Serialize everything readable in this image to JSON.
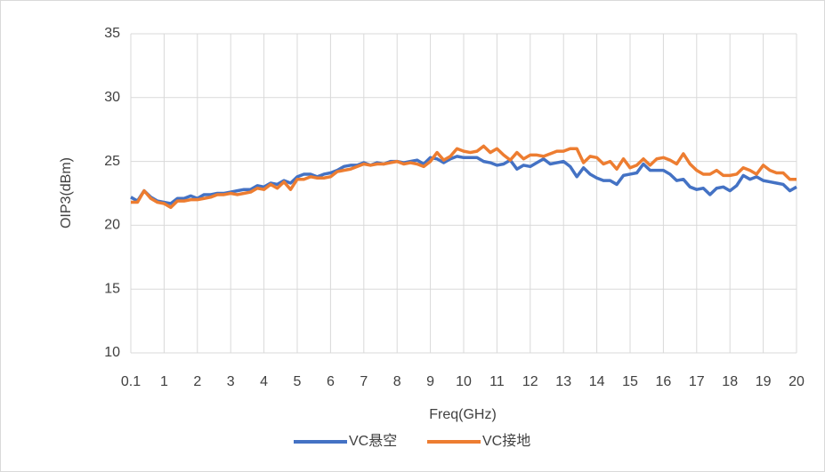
{
  "chart_data": {
    "type": "line",
    "x_label": "Freq(GHz)",
    "y_label": "OIP3(dBm)",
    "categories": [
      0.1,
      null,
      null,
      null,
      null,
      1,
      null,
      null,
      null,
      null,
      2,
      null,
      null,
      null,
      null,
      3,
      null,
      null,
      null,
      null,
      4,
      null,
      null,
      null,
      null,
      5,
      null,
      null,
      null,
      null,
      6,
      null,
      null,
      null,
      null,
      7,
      null,
      null,
      null,
      null,
      8,
      null,
      null,
      null,
      null,
      9,
      null,
      null,
      null,
      null,
      10,
      null,
      null,
      null,
      null,
      11,
      null,
      null,
      null,
      null,
      12,
      null,
      null,
      null,
      null,
      13,
      null,
      null,
      null,
      null,
      14,
      null,
      null,
      null,
      null,
      15,
      null,
      null,
      null,
      null,
      16,
      null,
      null,
      null,
      null,
      17,
      null,
      null,
      null,
      null,
      18,
      null,
      null,
      null,
      null,
      19,
      null,
      null,
      null,
      null,
      20
    ],
    "series": [
      {
        "name": "VC悬空",
        "color": "#4472c4",
        "values": [
          22.2,
          21.9,
          22.7,
          22.2,
          21.9,
          21.8,
          21.7,
          22.1,
          22.1,
          22.3,
          22.1,
          22.4,
          22.4,
          22.5,
          22.5,
          22.6,
          22.7,
          22.8,
          22.8,
          23.1,
          23.0,
          23.3,
          23.2,
          23.5,
          23.3,
          23.8,
          24.0,
          24.0,
          23.8,
          24.0,
          24.1,
          24.3,
          24.6,
          24.7,
          24.7,
          24.9,
          24.7,
          24.9,
          24.8,
          25.0,
          25.0,
          24.9,
          25.0,
          25.1,
          24.8,
          25.3,
          25.2,
          24.9,
          25.2,
          25.4,
          25.3,
          25.3,
          25.3,
          25.0,
          24.9,
          24.7,
          24.8,
          25.1,
          24.4,
          24.7,
          24.6,
          24.9,
          25.2,
          24.8,
          24.9,
          25.0,
          24.6,
          23.8,
          24.5,
          24.0,
          23.7,
          23.5,
          23.5,
          23.2,
          23.9,
          24.0,
          24.1,
          24.8,
          24.3,
          24.3,
          24.3,
          24.0,
          23.5,
          23.6,
          23.0,
          22.8,
          22.9,
          22.4,
          22.9,
          23.0,
          22.7,
          23.1,
          23.9,
          23.6,
          23.8,
          23.5,
          23.4,
          23.3,
          23.2,
          22.7,
          23.0
        ]
      },
      {
        "name": "VC接地",
        "color": "#ed7d31",
        "values": [
          21.8,
          21.8,
          22.7,
          22.1,
          21.8,
          21.7,
          21.4,
          21.9,
          21.9,
          22.0,
          22.0,
          22.1,
          22.2,
          22.4,
          22.4,
          22.5,
          22.4,
          22.5,
          22.6,
          22.9,
          22.8,
          23.2,
          22.9,
          23.4,
          22.8,
          23.6,
          23.6,
          23.8,
          23.7,
          23.7,
          23.8,
          24.2,
          24.3,
          24.4,
          24.6,
          24.8,
          24.7,
          24.8,
          24.8,
          24.9,
          25.0,
          24.8,
          24.9,
          24.8,
          24.6,
          25.0,
          25.7,
          25.1,
          25.4,
          26.0,
          25.8,
          25.7,
          25.8,
          26.2,
          25.7,
          26.0,
          25.5,
          25.1,
          25.7,
          25.2,
          25.5,
          25.5,
          25.4,
          25.6,
          25.8,
          25.8,
          26.0,
          26.0,
          24.9,
          25.4,
          25.3,
          24.8,
          25.0,
          24.4,
          25.2,
          24.5,
          24.7,
          25.2,
          24.7,
          25.2,
          25.3,
          25.1,
          24.8,
          25.6,
          24.8,
          24.3,
          24.0,
          24.0,
          24.3,
          23.9,
          23.9,
          24.0,
          24.5,
          24.3,
          24.0,
          24.7,
          24.3,
          24.1,
          24.1,
          23.6,
          23.6
        ]
      }
    ],
    "ylim": [
      10,
      35
    ],
    "yticks": [
      10,
      15,
      20,
      25,
      30,
      35
    ],
    "grid": true
  }
}
